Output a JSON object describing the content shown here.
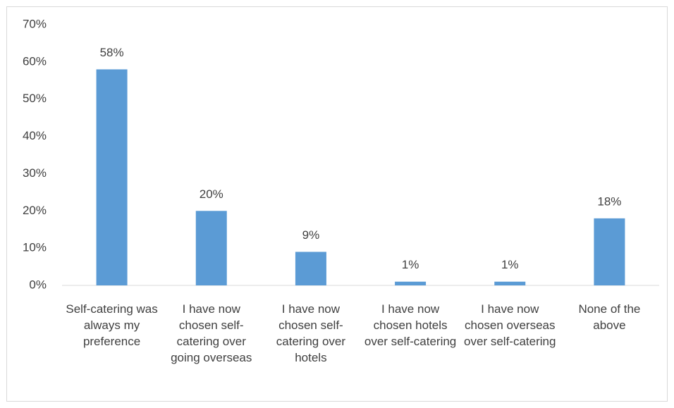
{
  "chart_data": {
    "type": "bar",
    "categories": [
      "Self-catering was always my preference",
      "I have now chosen self-catering over going overseas",
      "I have now chosen self-catering over hotels",
      "I have now chosen hotels over self-catering",
      "I have now chosen overseas over self-catering",
      "None of the above"
    ],
    "values": [
      58,
      20,
      9,
      1,
      1,
      18
    ],
    "value_labels": [
      "58%",
      "20%",
      "9%",
      "1%",
      "1%",
      "18%"
    ],
    "color": "#5b9bd5",
    "ylim": [
      0,
      70
    ],
    "yticks": [
      {
        "value": 0,
        "label": "0%"
      },
      {
        "value": 10,
        "label": "10%"
      },
      {
        "value": 20,
        "label": "20%"
      },
      {
        "value": 30,
        "label": "30%"
      },
      {
        "value": 40,
        "label": "40%"
      },
      {
        "value": 50,
        "label": "50%"
      },
      {
        "value": 60,
        "label": "60%"
      },
      {
        "value": 70,
        "label": "70%"
      }
    ],
    "grid": false
  }
}
